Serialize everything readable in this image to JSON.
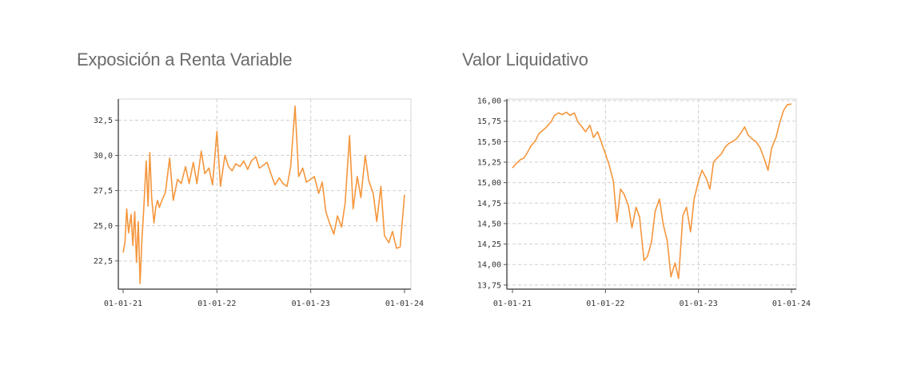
{
  "chart_data": [
    {
      "type": "line",
      "title": "Exposición a Renta Variable",
      "x_ticks": [
        "01-01-21",
        "01-01-22",
        "01-01-23",
        "01-01-24"
      ],
      "y_ticks": [
        "22,5",
        "25,0",
        "27,5",
        "30,0",
        "32,5"
      ],
      "x_range": [
        "2021-01-01",
        "2024-01-01"
      ],
      "ylim": [
        20.5,
        34.0
      ],
      "grid": true,
      "color": "#f5963c",
      "series": [
        {
          "x": [
            "2021-01-01",
            "2021-01-08",
            "2021-01-15",
            "2021-01-22",
            "2021-02-01",
            "2021-02-08",
            "2021-02-15",
            "2021-02-22",
            "2021-03-01",
            "2021-03-08",
            "2021-03-15",
            "2021-03-22",
            "2021-04-01",
            "2021-04-08",
            "2021-04-15",
            "2021-04-22",
            "2021-05-01",
            "2021-05-08",
            "2021-05-15",
            "2021-05-22",
            "2021-06-01",
            "2021-06-15",
            "2021-07-01",
            "2021-07-15",
            "2021-08-01",
            "2021-08-15",
            "2021-09-01",
            "2021-09-15",
            "2021-10-01",
            "2021-10-15",
            "2021-11-01",
            "2021-11-15",
            "2021-12-01",
            "2021-12-15",
            "2022-01-01",
            "2022-01-15",
            "2022-02-01",
            "2022-02-15",
            "2022-03-01",
            "2022-03-15",
            "2022-04-01",
            "2022-04-15",
            "2022-05-01",
            "2022-05-15",
            "2022-06-01",
            "2022-06-15",
            "2022-07-01",
            "2022-07-15",
            "2022-08-01",
            "2022-08-15",
            "2022-09-01",
            "2022-09-15",
            "2022-10-01",
            "2022-10-15",
            "2022-11-01",
            "2022-11-15",
            "2022-12-01",
            "2022-12-15",
            "2023-01-01",
            "2023-01-15",
            "2023-02-01",
            "2023-02-15",
            "2023-03-01",
            "2023-03-15",
            "2023-04-01",
            "2023-04-15",
            "2023-05-01",
            "2023-05-15",
            "2023-06-01",
            "2023-06-15",
            "2023-07-01",
            "2023-07-15",
            "2023-08-01",
            "2023-08-15",
            "2023-09-01",
            "2023-09-15",
            "2023-10-01",
            "2023-10-15",
            "2023-11-01",
            "2023-11-15",
            "2023-12-01",
            "2023-12-15",
            "2024-01-01"
          ],
          "values": [
            23.1,
            23.8,
            26.2,
            24.5,
            25.8,
            23.6,
            26.0,
            22.4,
            25.3,
            20.9,
            24.0,
            26.1,
            29.6,
            26.4,
            30.2,
            27.0,
            25.2,
            26.3,
            26.8,
            26.3,
            26.8,
            27.4,
            29.8,
            26.8,
            28.3,
            28.0,
            29.2,
            28.0,
            29.5,
            28.0,
            30.3,
            28.7,
            29.1,
            27.9,
            31.7,
            27.8,
            30.0,
            29.2,
            28.9,
            29.4,
            29.2,
            29.6,
            29.0,
            29.6,
            29.9,
            29.1,
            29.3,
            29.5,
            28.6,
            27.9,
            28.4,
            28.0,
            27.8,
            29.2,
            33.5,
            28.5,
            29.1,
            28.1,
            28.3,
            28.5,
            27.3,
            28.1,
            26.0,
            25.2,
            24.4,
            25.7,
            24.9,
            26.6,
            31.4,
            26.2,
            28.5,
            27.0,
            30.0,
            28.2,
            27.3,
            25.3,
            27.8,
            24.3,
            23.8,
            24.6,
            23.4,
            23.5,
            27.2
          ]
        }
      ]
    },
    {
      "type": "line",
      "title": "Valor Liquidativo",
      "x_ticks": [
        "01-01-21",
        "01-01-22",
        "01-01-23",
        "01-01-24"
      ],
      "y_ticks": [
        "13,75",
        "14,00",
        "14,25",
        "14,50",
        "14,75",
        "15,00",
        "15,25",
        "15,50",
        "15,75",
        "16,00"
      ],
      "x_range": [
        "2021-01-01",
        "2024-01-01"
      ],
      "ylim": [
        13.7,
        16.02
      ],
      "grid": true,
      "color": "#f5963c",
      "series": [
        {
          "x": [
            "2021-01-01",
            "2021-01-15",
            "2021-02-01",
            "2021-02-15",
            "2021-03-01",
            "2021-03-15",
            "2021-04-01",
            "2021-04-15",
            "2021-05-01",
            "2021-05-15",
            "2021-06-01",
            "2021-06-15",
            "2021-07-01",
            "2021-07-15",
            "2021-08-01",
            "2021-08-15",
            "2021-09-01",
            "2021-09-15",
            "2021-10-01",
            "2021-10-15",
            "2021-11-01",
            "2021-11-15",
            "2021-12-01",
            "2021-12-15",
            "2022-01-01",
            "2022-01-15",
            "2022-02-01",
            "2022-02-15",
            "2022-03-01",
            "2022-03-15",
            "2022-04-01",
            "2022-04-15",
            "2022-05-01",
            "2022-05-15",
            "2022-06-01",
            "2022-06-15",
            "2022-07-01",
            "2022-07-15",
            "2022-08-01",
            "2022-08-15",
            "2022-09-01",
            "2022-09-15",
            "2022-10-01",
            "2022-10-15",
            "2022-11-01",
            "2022-11-15",
            "2022-12-01",
            "2022-12-15",
            "2023-01-01",
            "2023-01-15",
            "2023-02-01",
            "2023-02-15",
            "2023-03-01",
            "2023-03-15",
            "2023-04-01",
            "2023-04-15",
            "2023-05-01",
            "2023-05-15",
            "2023-06-01",
            "2023-06-15",
            "2023-07-01",
            "2023-07-15",
            "2023-08-01",
            "2023-08-15",
            "2023-09-01",
            "2023-09-15",
            "2023-10-01",
            "2023-10-15",
            "2023-11-01",
            "2023-11-15",
            "2023-12-01",
            "2023-12-15",
            "2024-01-01"
          ],
          "values": [
            15.18,
            15.23,
            15.28,
            15.3,
            15.37,
            15.45,
            15.51,
            15.6,
            15.64,
            15.68,
            15.74,
            15.82,
            15.85,
            15.83,
            15.86,
            15.82,
            15.85,
            15.74,
            15.68,
            15.62,
            15.7,
            15.55,
            15.62,
            15.5,
            15.35,
            15.22,
            15.02,
            14.52,
            14.92,
            14.86,
            14.72,
            14.45,
            14.7,
            14.58,
            14.05,
            14.1,
            14.28,
            14.65,
            14.8,
            14.5,
            14.28,
            13.85,
            14.02,
            13.83,
            14.6,
            14.7,
            14.4,
            14.8,
            15.02,
            15.15,
            15.05,
            14.92,
            15.25,
            15.3,
            15.35,
            15.43,
            15.48,
            15.5,
            15.54,
            15.6,
            15.68,
            15.58,
            15.53,
            15.5,
            15.42,
            15.3,
            15.15,
            15.42,
            15.55,
            15.72,
            15.88,
            15.95,
            15.96
          ]
        }
      ]
    }
  ]
}
